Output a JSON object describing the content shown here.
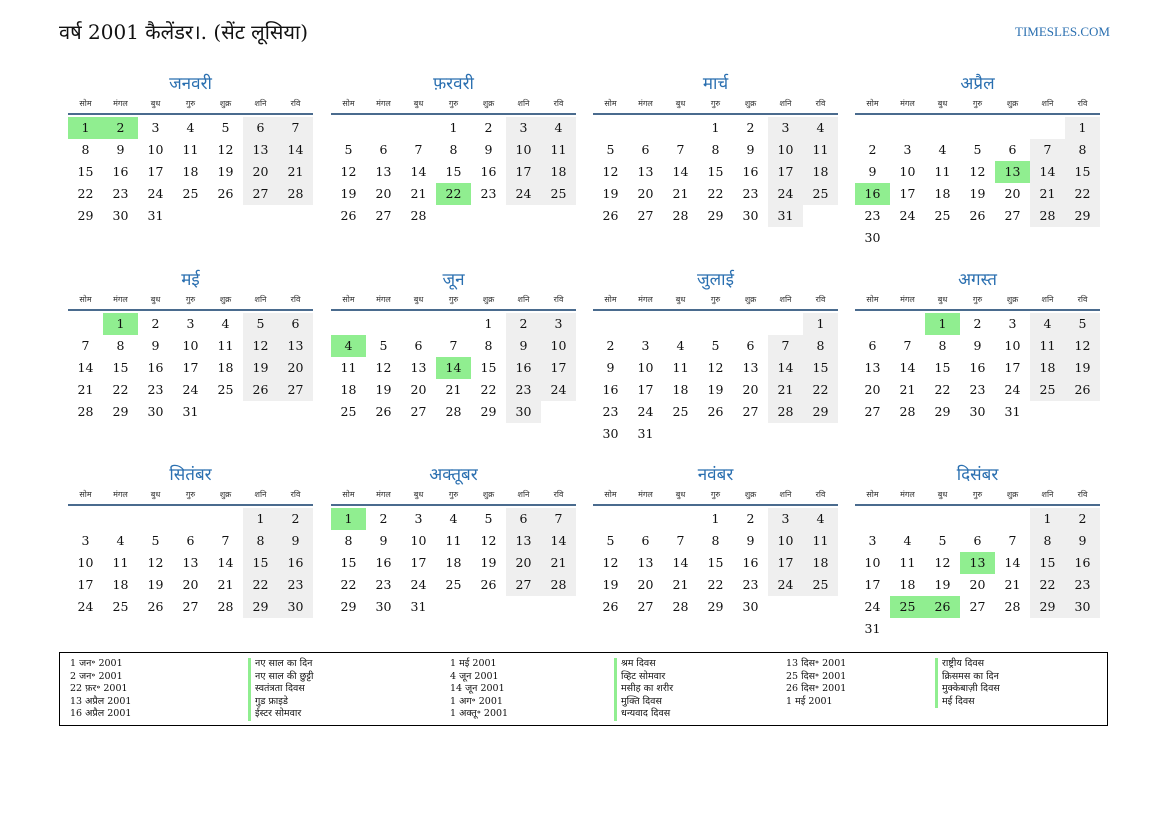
{
  "title": "वर्ष 2001 कैलेंडर।. (सेंट लूसिया)",
  "site": "TIMESLES.COM",
  "weekdays": [
    "सोम",
    "मंगल",
    "बुध",
    "गुरु",
    "शुक्र",
    "शनि",
    "रवि"
  ],
  "colors": {
    "accent": "#2a6fb0",
    "holiday": "#90ee90",
    "weekend": "#efefef",
    "rule": "#4a6b8e"
  },
  "months": [
    {
      "name": "जनवरी",
      "offset": 0,
      "days": 31,
      "holidays": [
        1,
        2
      ]
    },
    {
      "name": "फ़रवरी",
      "offset": 3,
      "days": 28,
      "holidays": [
        22
      ]
    },
    {
      "name": "मार्च",
      "offset": 3,
      "days": 31,
      "holidays": []
    },
    {
      "name": "अप्रैल",
      "offset": 6,
      "days": 30,
      "holidays": [
        13,
        16
      ]
    },
    {
      "name": "मई",
      "offset": 1,
      "days": 31,
      "holidays": [
        1
      ]
    },
    {
      "name": "जून",
      "offset": 4,
      "days": 30,
      "holidays": [
        4,
        14
      ]
    },
    {
      "name": "जुलाई",
      "offset": 6,
      "days": 31,
      "holidays": []
    },
    {
      "name": "अगस्त",
      "offset": 2,
      "days": 31,
      "holidays": [
        1
      ]
    },
    {
      "name": "सितंबर",
      "offset": 5,
      "days": 30,
      "holidays": []
    },
    {
      "name": "अक्तूबर",
      "offset": 0,
      "days": 31,
      "holidays": [
        1
      ]
    },
    {
      "name": "नवंबर",
      "offset": 3,
      "days": 30,
      "holidays": []
    },
    {
      "name": "दिसंबर",
      "offset": 5,
      "days": 31,
      "holidays": [
        13,
        25,
        26
      ]
    }
  ],
  "legend": {
    "col1_dates": [
      "1 जन॰ 2001",
      "2 जन॰ 2001",
      "22 फ़र॰ 2001",
      "13 अप्रैल 2001",
      "16 अप्रैल 2001"
    ],
    "col1_names": [
      "नए साल का दिन",
      "नए साल की छुट्टी",
      "स्वतंत्रता दिवस",
      "गुड फ्राइडे",
      "ईस्टर सोमवार"
    ],
    "col2_dates": [
      "1 मई 2001",
      "4 जून 2001",
      "14 जून 2001",
      "1 अग॰ 2001",
      "1 अक्तू॰ 2001"
    ],
    "col2_names": [
      "श्रम दिवस",
      "व्हिट सोमवार",
      "मसीह का शरीर",
      "मुक्ति दिवस",
      "धन्यवाद दिवस"
    ],
    "col3_dates": [
      "13 दिस॰ 2001",
      "25 दिस॰ 2001",
      "26 दिस॰ 2001",
      "1 मई 2001"
    ],
    "col3_names": [
      "राष्ट्रीय दिवस",
      "क्रिसमस का दिन",
      "मुक्केबाज़ी दिवस",
      "मई दिवस"
    ]
  }
}
